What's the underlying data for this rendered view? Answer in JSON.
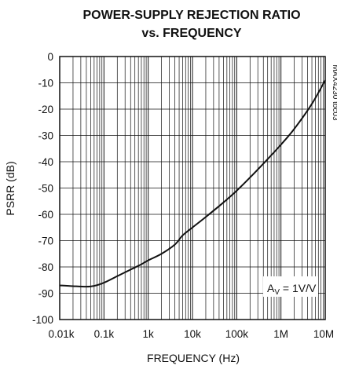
{
  "chart_data": {
    "type": "line",
    "title_line1": "POWER-SUPPLY REJECTION RATIO",
    "title_line2": "vs. FREQUENCY",
    "xlabel": "FREQUENCY (Hz)",
    "ylabel": "PSRR (dB)",
    "x_scale": "log",
    "xlim": [
      10,
      10000000
    ],
    "ylim": [
      -100,
      0
    ],
    "x_ticks": [
      10,
      100,
      1000,
      10000,
      100000,
      1000000,
      10000000
    ],
    "x_tick_labels": [
      "0.01k",
      "0.1k",
      "1k",
      "10k",
      "100k",
      "1M",
      "10M"
    ],
    "y_ticks": [
      0,
      -10,
      -20,
      -30,
      -40,
      -50,
      -60,
      -70,
      -80,
      -90,
      -100
    ],
    "y_tick_labels": [
      "0",
      "-10",
      "-20",
      "-30",
      "-40",
      "-50",
      "-60",
      "-70",
      "-80",
      "-90",
      "-100"
    ],
    "grid": true,
    "part_tag": "MAX4230 toc03",
    "annotation": {
      "main": "A",
      "sub": "V",
      "rest": " = 1V/V"
    },
    "series": [
      {
        "x": [
          10,
          20,
          40,
          60,
          100,
          200,
          400,
          700,
          1000,
          2000,
          4000,
          6000,
          10000,
          20000,
          50000,
          100000,
          200000,
          500000,
          1000000,
          2000000,
          5000000,
          10000000
        ],
        "y": [
          -87,
          -87.3,
          -87.5,
          -87.2,
          -86,
          -83.5,
          -81,
          -79,
          -77.5,
          -75,
          -71.5,
          -68,
          -65,
          -61,
          -55.5,
          -51,
          -46,
          -39,
          -33.5,
          -27.5,
          -18,
          -9
        ]
      }
    ]
  }
}
